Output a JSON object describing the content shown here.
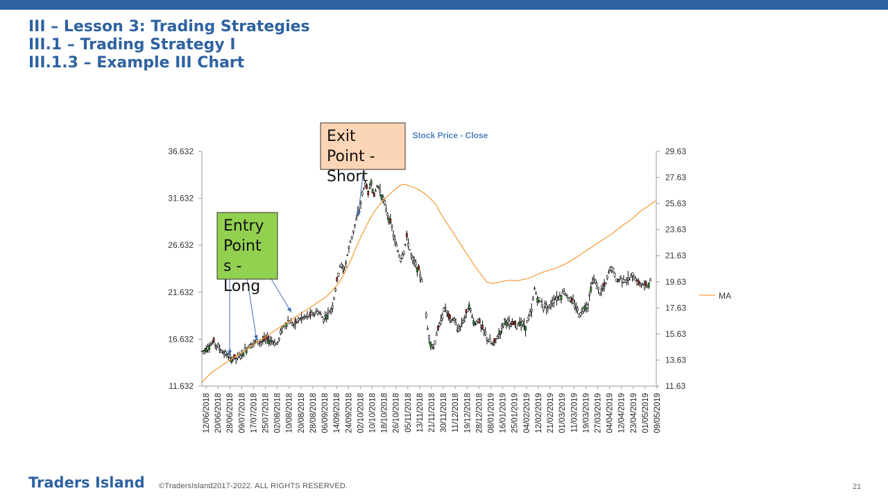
{
  "slide": {
    "title_line1": "III – Lesson 3: Trading Strategies",
    "title_line2": "III.1 – Trading Strategy I",
    "title_line3": "III.1.3 – Example III Chart",
    "brand": "Traders Island",
    "copyright": "©TradersIsland2017-2022. ALL RIGHTS RESERVED.",
    "page_number": "21"
  },
  "colors": {
    "accent": "#2e62a1",
    "ma_line": "#f2a040",
    "candle_up": "#2e9e2e",
    "candle_down": "#b03030",
    "entry_box": "#92d050",
    "exit_box": "#fbd5b5",
    "arrow": "#3f6fb0"
  },
  "chart_data": {
    "type": "line",
    "title": "Stock Price - Close",
    "legend": {
      "entries": [
        "MA"
      ],
      "position": "right"
    },
    "y_left": {
      "min": 11.632,
      "max": 36.632,
      "ticks": [
        "11.632",
        "16.632",
        "21.632",
        "26.632",
        "31.632",
        "36.632"
      ]
    },
    "y_right": {
      "min": 11.63,
      "max": 29.63,
      "ticks": [
        "11.63",
        "13.63",
        "15.63",
        "17.63",
        "19.63",
        "21.63",
        "23.63",
        "25.63",
        "27.63",
        "29.63"
      ]
    },
    "x_tick_labels": [
      "12/06/2018",
      "20/06/2018",
      "28/06/2018",
      "09/07/2018",
      "17/07/2018",
      "25/07/2018",
      "02/08/2018",
      "10/08/2018",
      "20/08/2018",
      "28/08/2018",
      "06/09/2018",
      "14/09/2018",
      "24/09/2018",
      "02/10/2018",
      "10/10/2018",
      "18/10/2018",
      "26/10/2018",
      "05/11/2018",
      "13/11/2018",
      "21/11/2018",
      "30/11/2018",
      "11/12/2018",
      "19/12/2018",
      "28/12/2018",
      "08/01/2019",
      "16/01/2019",
      "25/01/2019",
      "04/02/2019",
      "12/02/2019",
      "21/02/2019",
      "01/03/2019",
      "11/03/2019",
      "19/03/2019",
      "27/03/2019",
      "04/04/2019",
      "12/04/2019",
      "23/04/2019",
      "01/05/2019",
      "09/05/2019"
    ],
    "price_close_path": [
      [
        0,
        15.3
      ],
      [
        4,
        15.8
      ],
      [
        8,
        16.3
      ],
      [
        12,
        15.6
      ],
      [
        16,
        15.0
      ],
      [
        20,
        14.6
      ],
      [
        24,
        14.6
      ],
      [
        28,
        15.2
      ],
      [
        32,
        16.0
      ],
      [
        36,
        16.3
      ],
      [
        40,
        16.4
      ],
      [
        44,
        16.6
      ],
      [
        48,
        16.4
      ],
      [
        50,
        16.1
      ],
      [
        52,
        16.6
      ],
      [
        54,
        17.8
      ],
      [
        58,
        18.6
      ],
      [
        62,
        18.2
      ],
      [
        66,
        18.8
      ],
      [
        70,
        19.0
      ],
      [
        74,
        19.2
      ],
      [
        78,
        19.6
      ],
      [
        82,
        18.8
      ],
      [
        86,
        19.6
      ],
      [
        88,
        20.2
      ],
      [
        90,
        22.0
      ],
      [
        93,
        24.5
      ],
      [
        96,
        24.0
      ],
      [
        98,
        25.6
      ],
      [
        100,
        27.0
      ],
      [
        103,
        28.8
      ],
      [
        106,
        30.3
      ],
      [
        108,
        32.0
      ],
      [
        110,
        33.3
      ],
      [
        112,
        32.0
      ],
      [
        114,
        33.5
      ],
      [
        116,
        31.8
      ],
      [
        118,
        33.0
      ],
      [
        120,
        32.5
      ],
      [
        122,
        31.5
      ],
      [
        124,
        30.5
      ],
      [
        126,
        29.5
      ],
      [
        128,
        28.5
      ],
      [
        130,
        27.0
      ],
      [
        132,
        26.0
      ],
      [
        134,
        25.2
      ],
      [
        136,
        26.0
      ],
      [
        138,
        27.5
      ],
      [
        140,
        26.2
      ],
      [
        142,
        25.0
      ],
      [
        144,
        24.5
      ],
      [
        146,
        24.0
      ],
      [
        148,
        23.0
      ],
      [
        152,
        17.7
      ],
      [
        154,
        16.3
      ],
      [
        156,
        15.7
      ],
      [
        158,
        17.2
      ],
      [
        160,
        18.0
      ],
      [
        162,
        19.2
      ],
      [
        164,
        20.0
      ],
      [
        166,
        19.0
      ],
      [
        168,
        18.6
      ],
      [
        170,
        18.8
      ],
      [
        172,
        17.6
      ],
      [
        174,
        18.0
      ],
      [
        176,
        18.6
      ],
      [
        178,
        19.4
      ],
      [
        180,
        20.3
      ],
      [
        182,
        19.0
      ],
      [
        184,
        18.2
      ],
      [
        186,
        18.8
      ],
      [
        188,
        17.9
      ],
      [
        190,
        17.5
      ],
      [
        192,
        16.8
      ],
      [
        194,
        16.3
      ],
      [
        196,
        16.0
      ],
      [
        198,
        16.6
      ],
      [
        200,
        17.2
      ],
      [
        202,
        17.8
      ],
      [
        204,
        18.7
      ],
      [
        206,
        18.4
      ],
      [
        208,
        18.0
      ],
      [
        210,
        18.3
      ],
      [
        212,
        18.0
      ],
      [
        214,
        18.5
      ],
      [
        216,
        18.2
      ],
      [
        218,
        18.0
      ],
      [
        220,
        18.8
      ],
      [
        222,
        19.6
      ],
      [
        224,
        22.0
      ],
      [
        226,
        21.0
      ],
      [
        228,
        20.6
      ],
      [
        230,
        20.0
      ],
      [
        232,
        20.3
      ],
      [
        234,
        20.0
      ],
      [
        236,
        20.7
      ],
      [
        238,
        21.0
      ],
      [
        240,
        21.1
      ],
      [
        242,
        21.3
      ],
      [
        244,
        21.7
      ],
      [
        246,
        21.3
      ],
      [
        248,
        20.7
      ],
      [
        250,
        20.5
      ],
      [
        252,
        20.0
      ],
      [
        254,
        19.3
      ],
      [
        256,
        19.6
      ],
      [
        258,
        20.2
      ],
      [
        260,
        20.3
      ],
      [
        262,
        22.2
      ],
      [
        264,
        23.0
      ],
      [
        266,
        22.3
      ],
      [
        268,
        21.6
      ],
      [
        270,
        22.0
      ],
      [
        272,
        22.5
      ],
      [
        274,
        23.7
      ],
      [
        276,
        24.3
      ],
      [
        278,
        23.3
      ],
      [
        280,
        22.8
      ],
      [
        282,
        23.2
      ],
      [
        284,
        23.0
      ],
      [
        286,
        22.9
      ],
      [
        288,
        23.0
      ],
      [
        290,
        23.4
      ],
      [
        292,
        23.1
      ],
      [
        294,
        22.5
      ],
      [
        296,
        22.6
      ],
      [
        298,
        22.3
      ],
      [
        300,
        22.4
      ],
      [
        302,
        22.8
      ]
    ],
    "ma_path": [
      [
        0,
        11.9
      ],
      [
        4,
        12.4
      ],
      [
        8,
        12.8
      ],
      [
        12,
        13.1
      ],
      [
        16,
        13.4
      ],
      [
        20,
        13.7
      ],
      [
        24,
        14.0
      ],
      [
        28,
        14.3
      ],
      [
        32,
        14.6
      ],
      [
        36,
        14.9
      ],
      [
        40,
        15.2
      ],
      [
        44,
        15.5
      ],
      [
        48,
        15.8
      ],
      [
        52,
        16.1
      ],
      [
        56,
        16.4
      ],
      [
        60,
        16.7
      ],
      [
        64,
        17.0
      ],
      [
        68,
        17.3
      ],
      [
        72,
        17.6
      ],
      [
        76,
        17.9
      ],
      [
        80,
        18.2
      ],
      [
        84,
        18.5
      ],
      [
        88,
        19.0
      ],
      [
        92,
        19.5
      ],
      [
        96,
        20.3
      ],
      [
        100,
        21.2
      ],
      [
        104,
        22.3
      ],
      [
        108,
        23.3
      ],
      [
        112,
        24.2
      ],
      [
        116,
        25.0
      ],
      [
        120,
        25.6
      ],
      [
        124,
        26.1
      ],
      [
        128,
        26.5
      ],
      [
        132,
        26.9
      ],
      [
        134,
        27.05
      ],
      [
        136,
        27.1
      ],
      [
        138,
        27.05
      ],
      [
        142,
        26.9
      ],
      [
        146,
        26.7
      ],
      [
        150,
        26.4
      ],
      [
        154,
        26.0
      ],
      [
        158,
        25.5
      ],
      [
        160,
        25.0
      ],
      [
        164,
        24.3
      ],
      [
        168,
        23.6
      ],
      [
        172,
        22.9
      ],
      [
        176,
        22.2
      ],
      [
        180,
        21.5
      ],
      [
        184,
        20.8
      ],
      [
        188,
        20.2
      ],
      [
        190,
        19.9
      ],
      [
        192,
        19.6
      ],
      [
        196,
        19.5
      ],
      [
        200,
        19.6
      ],
      [
        204,
        19.7
      ],
      [
        208,
        19.75
      ],
      [
        212,
        19.7
      ],
      [
        216,
        19.8
      ],
      [
        220,
        19.9
      ],
      [
        224,
        20.1
      ],
      [
        228,
        20.3
      ],
      [
        232,
        20.45
      ],
      [
        236,
        20.6
      ],
      [
        240,
        20.75
      ],
      [
        244,
        20.95
      ],
      [
        248,
        21.2
      ],
      [
        252,
        21.5
      ],
      [
        256,
        21.8
      ],
      [
        260,
        22.1
      ],
      [
        264,
        22.4
      ],
      [
        268,
        22.7
      ],
      [
        272,
        23.0
      ],
      [
        276,
        23.3
      ],
      [
        280,
        23.65
      ],
      [
        284,
        24.0
      ],
      [
        288,
        24.3
      ],
      [
        292,
        24.7
      ],
      [
        296,
        25.1
      ],
      [
        300,
        25.4
      ],
      [
        304,
        25.7
      ],
      [
        306,
        25.85
      ]
    ],
    "annotations": [
      {
        "label": "Entry Points - Long",
        "line1": "Entry",
        "line2": "Point",
        "line3": "s -",
        "line4": "Long"
      },
      {
        "label": "Exit Point - Short",
        "line1": "Exit",
        "line2": "Point -",
        "line3": "Short"
      }
    ]
  }
}
